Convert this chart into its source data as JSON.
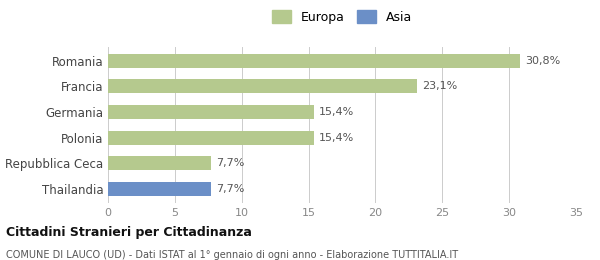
{
  "categories": [
    "Romania",
    "Francia",
    "Germania",
    "Polonia",
    "Repubblica Ceca",
    "Thailandia"
  ],
  "values": [
    30.8,
    23.1,
    15.4,
    15.4,
    7.7,
    7.7
  ],
  "labels": [
    "30,8%",
    "23,1%",
    "15,4%",
    "15,4%",
    "7,7%",
    "7,7%"
  ],
  "colors": [
    "#b5c98e",
    "#b5c98e",
    "#b5c98e",
    "#b5c98e",
    "#b5c98e",
    "#6b8fc7"
  ],
  "europa_color": "#b5c98e",
  "asia_color": "#6b8fc7",
  "xlim": [
    0,
    35
  ],
  "xticks": [
    0,
    5,
    10,
    15,
    20,
    25,
    30,
    35
  ],
  "title_main": "Cittadini Stranieri per Cittadinanza",
  "title_sub": "COMUNE DI LAUCO (UD) - Dati ISTAT al 1° gennaio di ogni anno - Elaborazione TUTTITALIA.IT",
  "background_color": "#ffffff",
  "bar_height": 0.55,
  "legend_europa": "Europa",
  "legend_asia": "Asia"
}
